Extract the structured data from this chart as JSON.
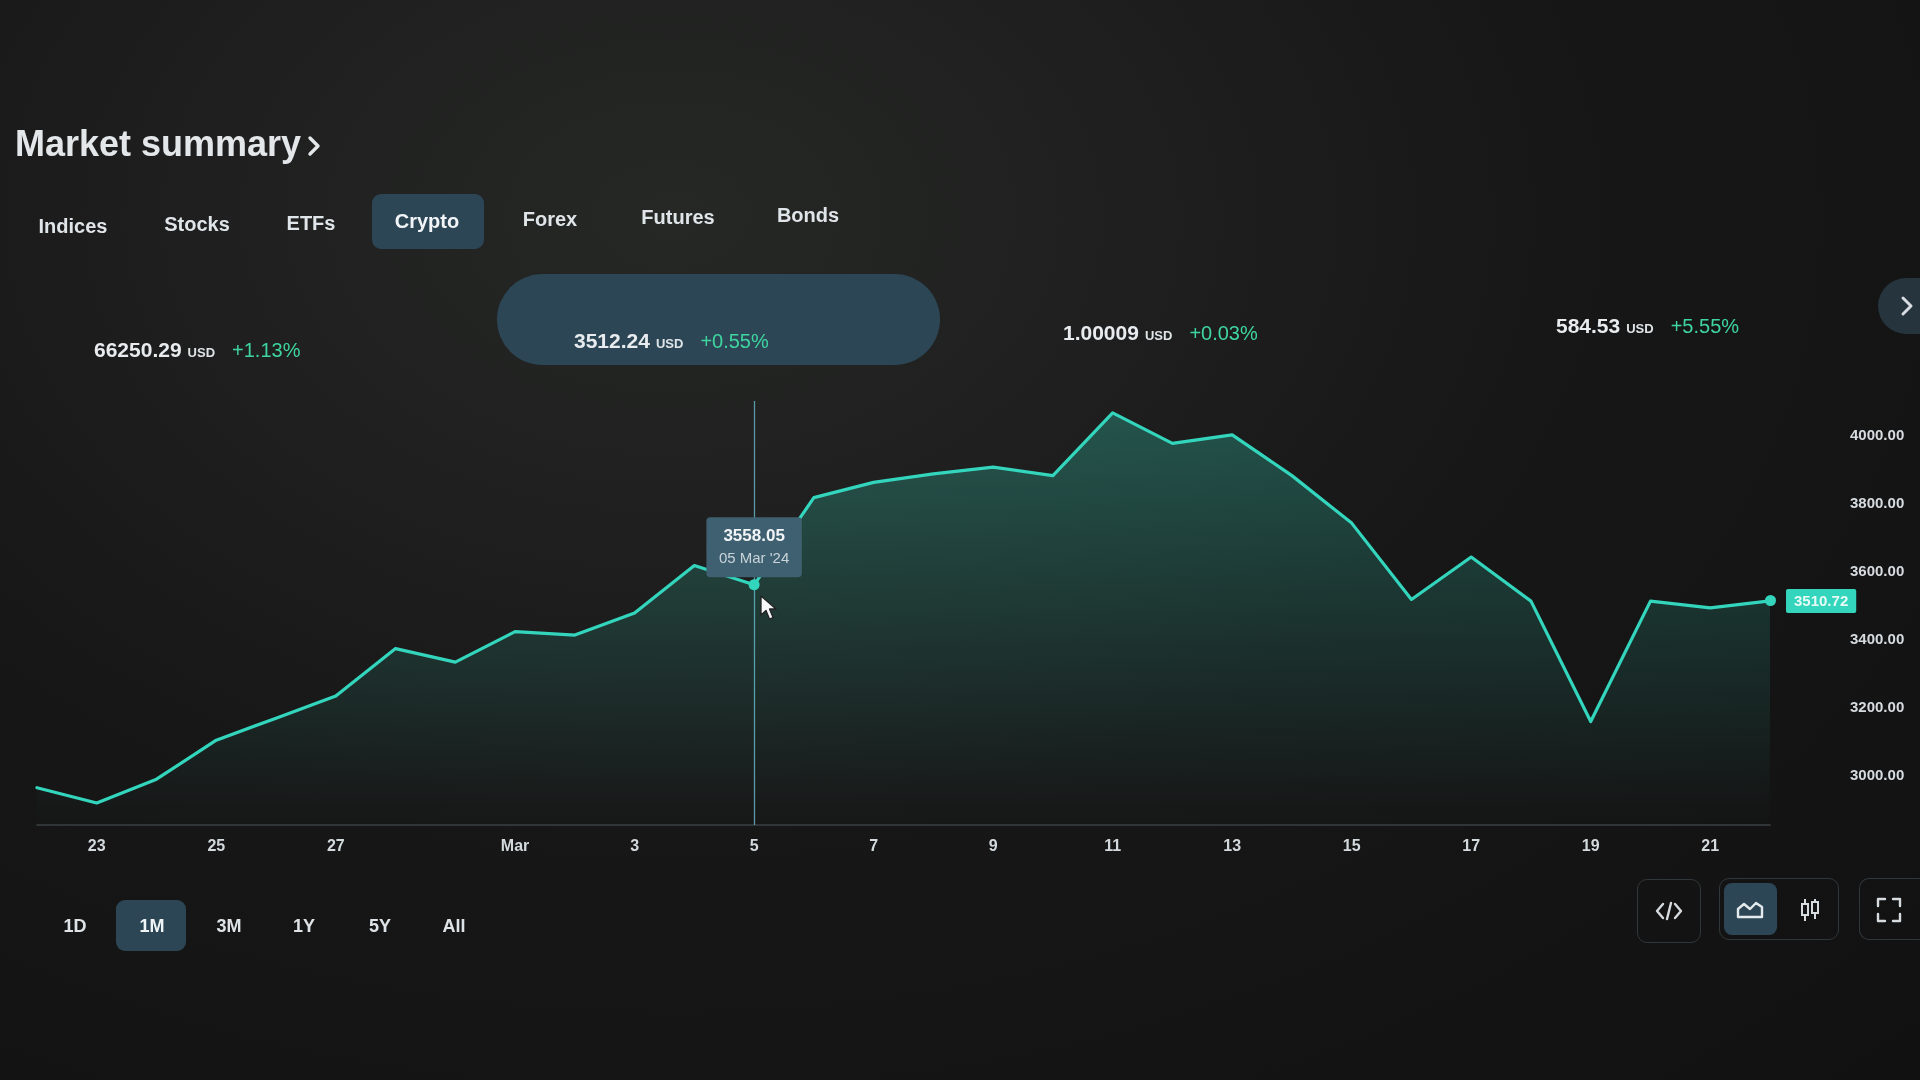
{
  "chart_data": {
    "type": "area",
    "title": "Market summary",
    "x": [
      "2024-02-22",
      "2024-02-23",
      "2024-02-24",
      "2024-02-25",
      "2024-02-26",
      "2024-02-27",
      "2024-02-28",
      "2024-02-29",
      "2024-03-01",
      "2024-03-02",
      "2024-03-03",
      "2024-03-04",
      "2024-03-05",
      "2024-03-06",
      "2024-03-07",
      "2024-03-08",
      "2024-03-09",
      "2024-03-10",
      "2024-03-11",
      "2024-03-12",
      "2024-03-13",
      "2024-03-14",
      "2024-03-15",
      "2024-03-16",
      "2024-03-17",
      "2024-03-18",
      "2024-03-19",
      "2024-03-20",
      "2024-03-21",
      "2024-03-22"
    ],
    "series": [
      {
        "color": "#33d6bd",
        "values": [
          2960,
          2915,
          2985,
          3100,
          3165,
          3230,
          3370,
          3330,
          3420,
          3410,
          3475,
          3615,
          3558.05,
          3815,
          3860,
          3885,
          3905,
          3880,
          4065,
          3975,
          4000,
          3880,
          3740,
          3515,
          3640,
          3510,
          3155,
          3510,
          3490,
          3510.72
        ],
        "value_labels": [
          null,
          null,
          null,
          null,
          null,
          null,
          null,
          null,
          null,
          null,
          null,
          null,
          "3558.05",
          null,
          null,
          null,
          null,
          null,
          null,
          null,
          null,
          null,
          null,
          null,
          null,
          null,
          null,
          null,
          null,
          "3510.72"
        ]
      }
    ],
    "xlim": [
      "2024-02-22",
      "2024-03-22"
    ],
    "xticks": [
      {
        "value": "2024-02-23",
        "label": "23"
      },
      {
        "value": "2024-02-25",
        "label": "25"
      },
      {
        "value": "2024-02-27",
        "label": "27"
      },
      {
        "value": "2024-03-01",
        "label": "Mar"
      },
      {
        "value": "2024-03-03",
        "label": "3"
      },
      {
        "value": "2024-03-05",
        "label": "5"
      },
      {
        "value": "2024-03-07",
        "label": "7"
      },
      {
        "value": "2024-03-09",
        "label": "9"
      },
      {
        "value": "2024-03-11",
        "label": "11"
      },
      {
        "value": "2024-03-13",
        "label": "13"
      },
      {
        "value": "2024-03-15",
        "label": "15"
      },
      {
        "value": "2024-03-17",
        "label": "17"
      },
      {
        "value": "2024-03-19",
        "label": "19"
      },
      {
        "value": "2024-03-21",
        "label": "21"
      }
    ],
    "ylim": [
      2850,
      4100
    ],
    "yticks": [
      {
        "value": 3000,
        "label": "3000.00"
      },
      {
        "value": 3200,
        "label": "3200.00"
      },
      {
        "value": 3400,
        "label": "3400.00"
      },
      {
        "value": 3600,
        "label": "3600.00"
      },
      {
        "value": 3800,
        "label": "3800.00"
      },
      {
        "value": 4000,
        "label": "4000.00"
      }
    ],
    "marker": "none",
    "ref_lines": [
      {
        "axis": "x",
        "value": "2024-03-05",
        "color": "#5b98aa"
      }
    ],
    "annotations": [
      "Indices",
      "Stocks",
      "ETFs",
      "Crypto",
      "Forex",
      "Futures",
      "Bonds",
      "66250.29",
      "USD",
      "+1.13%",
      "3512.24",
      "USD",
      "+0.55%",
      "1.00009",
      "USD",
      "+0.03%",
      "584.53",
      "USD",
      "+5.55%",
      {
        "text": "05 Mar '24",
        "x": "2024-03-05",
        "y": 3558.05
      },
      "1D",
      "1M",
      "3M",
      "1Y",
      "5Y",
      "All"
    ]
  }
}
